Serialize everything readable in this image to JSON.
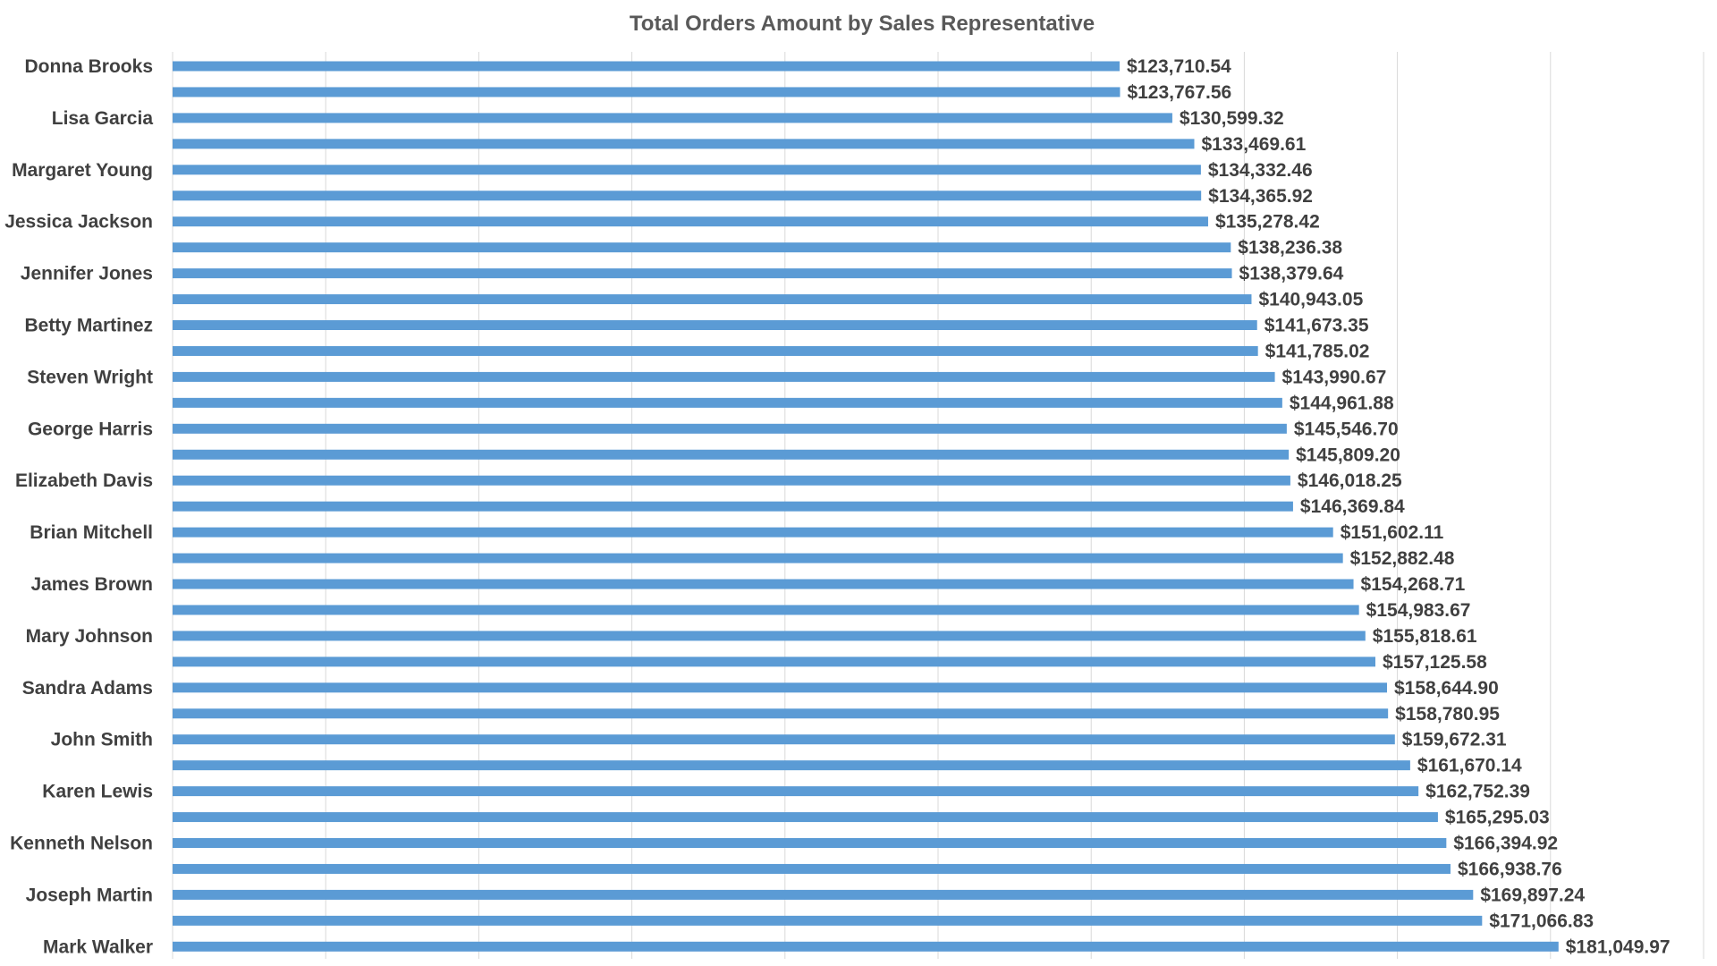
{
  "chart_data": {
    "type": "bar",
    "orientation": "horizontal",
    "title": "Total Orders Amount by Sales Representative",
    "xlabel": "",
    "ylabel": "",
    "xlim": [
      0,
      200000
    ],
    "grid": true,
    "legend": "none",
    "bar_color": "#5B9BD5",
    "value_prefix": "$",
    "categories": [
      "Donna Brooks",
      "",
      "Lisa Garcia",
      "",
      "Margaret Young",
      "",
      "Jessica Jackson",
      "",
      "Jennifer Jones",
      "",
      "Betty Martinez",
      "",
      "Steven Wright",
      "",
      "George Harris",
      "",
      "Elizabeth Davis",
      "",
      "Brian Mitchell",
      "",
      "James Brown",
      "",
      "Mary Johnson",
      "",
      "Sandra Adams",
      "",
      "John Smith",
      "",
      "Karen Lewis",
      "",
      "Kenneth Nelson",
      "",
      "Joseph Martin",
      "",
      "Mark Walker"
    ],
    "values": [
      123710.54,
      123767.56,
      130599.32,
      133469.61,
      134332.46,
      134365.92,
      135278.42,
      138236.38,
      138379.64,
      140943.05,
      141673.35,
      141785.02,
      143990.67,
      144961.88,
      145546.7,
      145809.2,
      146018.25,
      146369.84,
      151602.11,
      152882.48,
      154268.71,
      154983.67,
      155818.61,
      157125.58,
      158644.9,
      158780.95,
      159672.31,
      161670.14,
      162752.39,
      165295.03,
      166394.92,
      166938.76,
      169897.24,
      171066.83,
      181049.97
    ],
    "data_labels": [
      "$123,710.54",
      "$123,767.56",
      "$130,599.32",
      "$133,469.61",
      "$134,332.46",
      "$134,365.92",
      "$135,278.42",
      "$138,236.38",
      "$138,379.64",
      "$140,943.05",
      "$141,673.35",
      "$141,785.02",
      "$143,990.67",
      "$144,961.88",
      "$145,546.70",
      "$145,809.20",
      "$146,018.25",
      "$146,369.84",
      "$151,602.11",
      "$152,882.48",
      "$154,268.71",
      "$154,983.67",
      "$155,818.61",
      "$157,125.58",
      "$158,644.90",
      "$158,780.95",
      "$159,672.31",
      "$161,670.14",
      "$162,752.39",
      "$165,295.03",
      "$166,394.92",
      "$166,938.76",
      "$169,897.24",
      "$171,066.83",
      "$181,049.97"
    ]
  }
}
